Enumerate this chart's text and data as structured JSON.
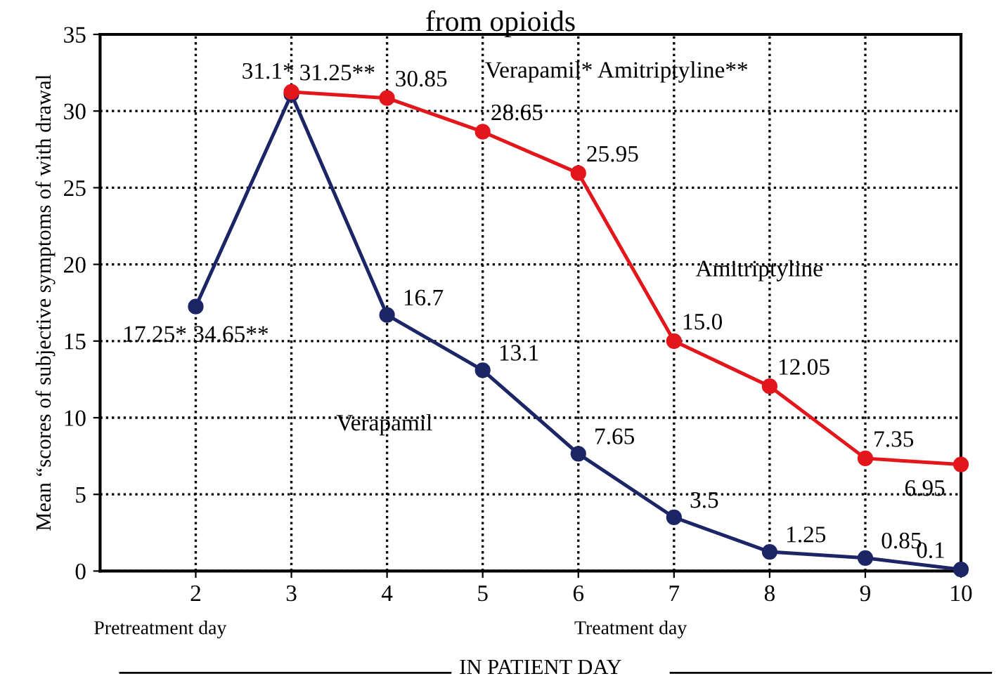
{
  "chart_data": {
    "type": "line",
    "title": "from opioids",
    "ylabel": "Mean “scores of subjective symptoms of with drawal",
    "xlim": [
      1,
      10
    ],
    "xticks": [
      2,
      3,
      4,
      5,
      6,
      7,
      8,
      9,
      10
    ],
    "ylim": [
      0,
      35
    ],
    "yticks": [
      0,
      5,
      10,
      15,
      20,
      25,
      30,
      35
    ],
    "grid": true,
    "marker": "circle",
    "line_style": "solid",
    "series": [
      {
        "name": "Verapamil",
        "color": "#1c2566",
        "x": [
          2,
          3,
          4,
          5,
          6,
          7,
          8,
          9,
          10
        ],
        "values": [
          17.25,
          31.1,
          16.7,
          13.1,
          7.65,
          3.5,
          1.25,
          0.85,
          0.1
        ],
        "value_labels": [
          "17.25* 34.65**",
          "31.1*",
          "16.7",
          "13.1",
          "7.65",
          "3.5",
          "1.25",
          "0.85",
          "0.1"
        ]
      },
      {
        "name": "Amitriptyline",
        "color": "#e3161c",
        "x": [
          3,
          4,
          5,
          6,
          7,
          8,
          9,
          10
        ],
        "values": [
          31.25,
          30.85,
          28.65,
          25.95,
          15.0,
          12.05,
          7.35,
          6.95
        ],
        "value_labels": [
          "31.25**",
          "30.85",
          "28.65",
          "25.95",
          "15.0",
          "12.05",
          "7.35",
          "6.95"
        ]
      }
    ],
    "annotations": [
      "Verapamil* Amitriptyline**",
      "Pretreatment day",
      "Treatment day",
      "IN PATIENT DAY"
    ]
  }
}
